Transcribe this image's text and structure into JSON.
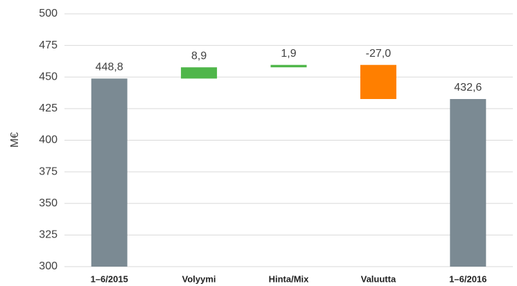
{
  "chart_data": {
    "type": "waterfall",
    "y_label": "M€",
    "categories": [
      "1–6/2015",
      "Volyymi",
      "Hinta/Mix",
      "Valuutta",
      "1–6/2016"
    ],
    "values": [
      448.8,
      8.9,
      1.9,
      -27.0,
      432.6
    ],
    "value_labels": [
      "448,8",
      "8,9",
      "1,9",
      "-27,0",
      "432,6"
    ],
    "colors": [
      "#7b8a93",
      "#4fb64a",
      "#4fb64a",
      "#ff7f00",
      "#7b8a93"
    ],
    "ylim": [
      300,
      500
    ],
    "yticks": [
      300,
      325,
      350,
      375,
      400,
      425,
      450,
      475,
      500
    ],
    "grid": true
  }
}
